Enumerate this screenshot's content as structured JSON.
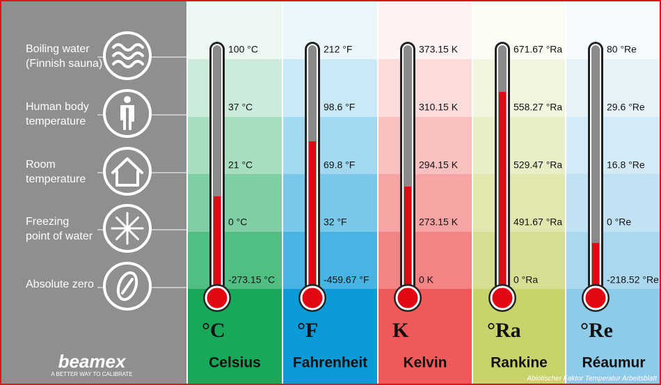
{
  "brand": {
    "logo": "beamex",
    "tagline": "A BETTER WAY TO CALIBRATE"
  },
  "reference_points": [
    {
      "lines": [
        "Boiling water",
        "(Finnish sauna)"
      ]
    },
    {
      "lines": [
        "Human body",
        "temperature"
      ]
    },
    {
      "lines": [
        "Room",
        "temperature"
      ]
    },
    {
      "lines": [
        "Freezing",
        "point of water"
      ]
    },
    {
      "lines": [
        "Absolute zero"
      ]
    }
  ],
  "scales": [
    {
      "symbol": "°C",
      "name": "Celsius",
      "readings": [
        "100 °C",
        "37 °C",
        "21 °C",
        "0 °C",
        "-273.15 °C"
      ]
    },
    {
      "symbol": "°F",
      "name": "Fahrenheit",
      "readings": [
        "212 °F",
        "98.6 °F",
        "69.8 °F",
        "32 °F",
        "-459.67 °F"
      ]
    },
    {
      "symbol": "K",
      "name": "Kelvin",
      "readings": [
        "373.15 K",
        "310.15 K",
        "294.15 K",
        "273.15 K",
        "0 K"
      ]
    },
    {
      "symbol": "°Ra",
      "name": "Rankine",
      "readings": [
        "671.67 °Ra",
        "558.27 °Ra",
        "529.47 °Ra",
        "491.67 °Ra",
        "0 °Ra"
      ]
    },
    {
      "symbol": "°Re",
      "name": "Réaumur",
      "readings": [
        "80 °Re",
        "29.6 °Re",
        "16.8 °Re",
        "0 °Re",
        "-218.52 °Re"
      ]
    }
  ],
  "watermark": "Abiotischer Faktor Temperatur Arbeitsblatt"
}
